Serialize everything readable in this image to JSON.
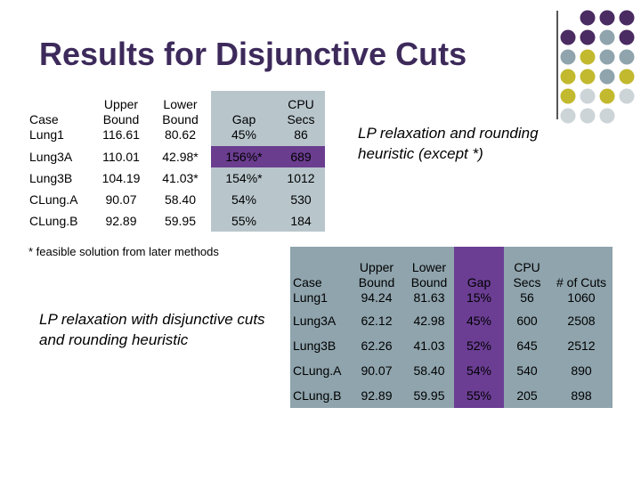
{
  "slide": {
    "title": "Results for Disjunctive Cuts",
    "footnote": "* feasible solution from later methods",
    "caption_top": "LP relaxation and rounding heuristic (except *)",
    "caption_bottom": "LP relaxation with disjunctive cuts and rounding heuristic"
  },
  "colors": {
    "title": "#3d2a5b",
    "dot_purple": "#4a2b62",
    "dot_gray": "#8fa4ad",
    "dot_yellow": "#c2b92e",
    "dot_light": "#ccd4d8",
    "table_light": "#b8c6cc",
    "table_purple": "#6a3d8f",
    "table2_bg": "#8fa4ad"
  },
  "table1": {
    "headers": [
      "Case",
      "Upper Bound",
      "Lower Bound",
      "Gap",
      "CPU Secs"
    ],
    "rows": [
      [
        "Lung1",
        "116.61",
        "80.62",
        "45%",
        "86"
      ],
      [
        "Lung3A",
        "110.01",
        "42.98*",
        "156%*",
        "689"
      ],
      [
        "Lung3B",
        "104.19",
        "41.03*",
        "154%*",
        "1012"
      ],
      [
        "CLung.A",
        "90.07",
        "58.40",
        "54%",
        "530"
      ],
      [
        "CLung.B",
        "92.89",
        "59.95",
        "55%",
        "184"
      ]
    ]
  },
  "table2": {
    "headers": [
      "Case",
      "Upper Bound",
      "Lower Bound",
      "Gap",
      "CPU Secs",
      "# of Cuts"
    ],
    "rows": [
      [
        "Lung1",
        "94.24",
        "81.63",
        "15%",
        "56",
        "1060"
      ],
      [
        "Lung3A",
        "62.12",
        "42.98",
        "45%",
        "600",
        "2508"
      ],
      [
        "Lung3B",
        "62.26",
        "41.03",
        "52%",
        "645",
        "2512"
      ],
      [
        "CLung.A",
        "90.07",
        "58.40",
        "54%",
        "540",
        "890"
      ],
      [
        "CLung.B",
        "92.89",
        "59.95",
        "55%",
        "205",
        "898"
      ]
    ]
  }
}
